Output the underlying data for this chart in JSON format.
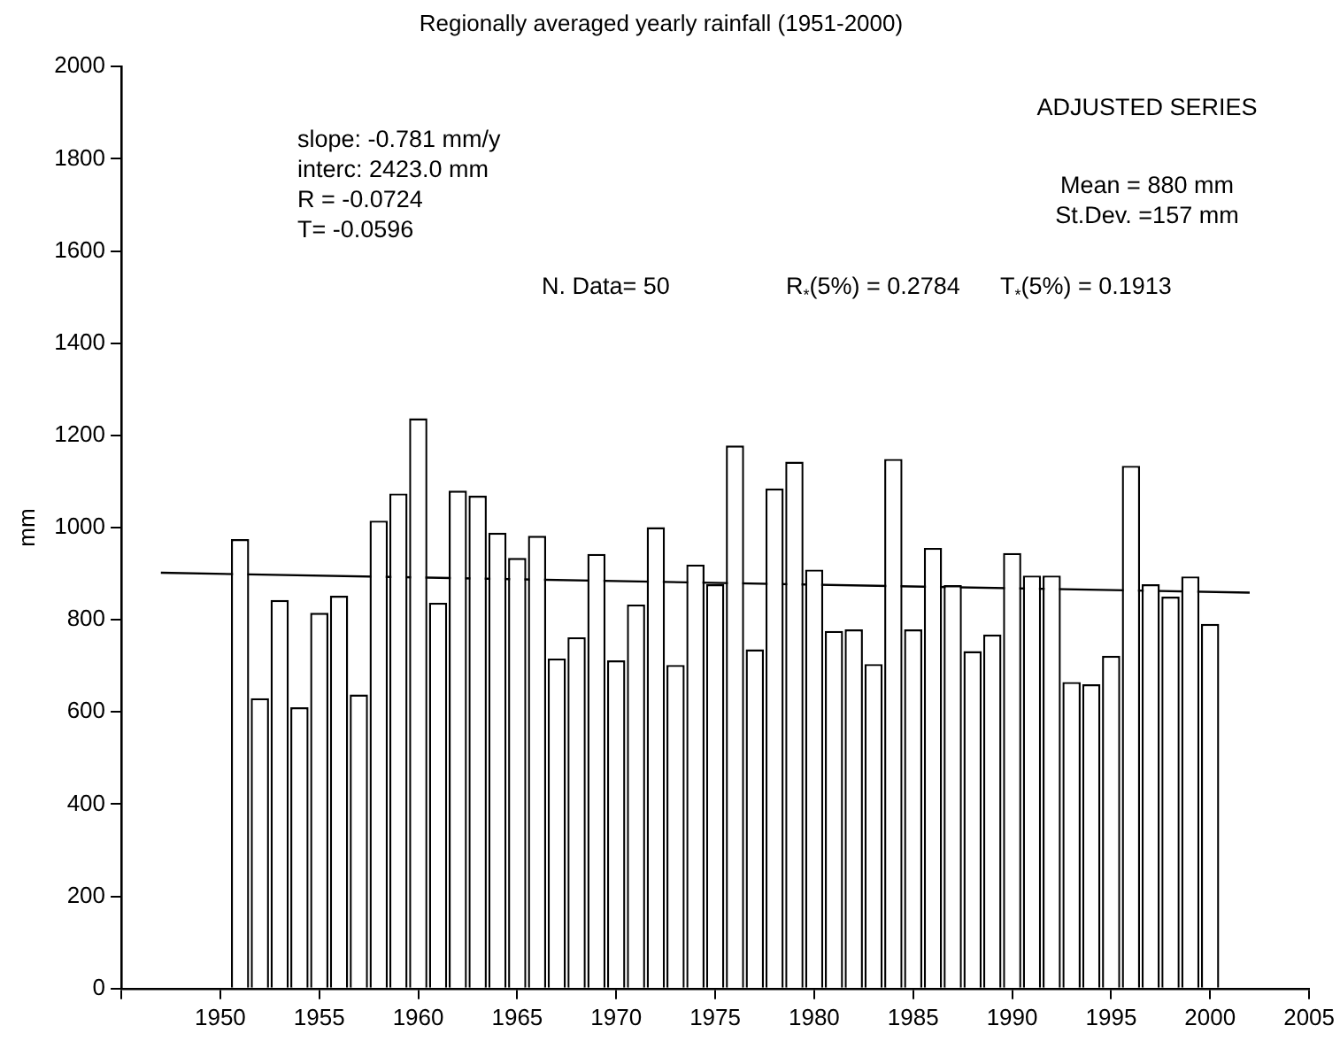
{
  "chart_data": {
    "type": "bar",
    "title": "Regionally averaged yearly rainfall (1951-2000)",
    "ylabel": "mm",
    "x": [
      1951,
      1952,
      1953,
      1954,
      1955,
      1956,
      1957,
      1958,
      1959,
      1960,
      1961,
      1962,
      1963,
      1964,
      1965,
      1966,
      1967,
      1968,
      1969,
      1970,
      1971,
      1972,
      1973,
      1974,
      1975,
      1976,
      1977,
      1978,
      1979,
      1980,
      1981,
      1982,
      1983,
      1984,
      1985,
      1986,
      1987,
      1988,
      1989,
      1990,
      1991,
      1992,
      1993,
      1994,
      1995,
      1996,
      1997,
      1998,
      1999,
      2000
    ],
    "series": [
      {
        "color": "#ffffff",
        "values": [
          975,
          630,
          843,
          610,
          815,
          852,
          638,
          1015,
          1074,
          1237,
          837,
          1080,
          1069,
          989,
          934,
          982,
          716,
          762,
          943,
          712,
          833,
          1001,
          702,
          920,
          877,
          1178,
          736,
          1085,
          1143,
          909,
          776,
          779,
          704,
          1149,
          779,
          956,
          875,
          732,
          768,
          945,
          896,
          896,
          665,
          660,
          722,
          1134,
          877,
          850,
          894,
          791
        ]
      },
      {
        "type": "line",
        "color": "#000000",
        "x": [
          1947,
          2002
        ],
        "values": [
          902,
          859
        ]
      }
    ],
    "xlim": [
      1945,
      2005
    ],
    "xticks": [
      {
        "value": 1945,
        "label": null
      },
      1950,
      1955,
      1960,
      1965,
      1970,
      1975,
      1980,
      1985,
      1990,
      1995,
      2000,
      2005
    ],
    "ylim": [
      0,
      2000
    ],
    "yticks": [
      0,
      200,
      400,
      600,
      800,
      1000,
      1200,
      1400,
      1600,
      1800,
      2000
    ],
    "grid": false,
    "legend": false,
    "annotations": [
      "ADJUSTED SERIES",
      "slope: -0.781 mm/y",
      "interc: 2423.0 mm",
      "R = -0.0724",
      "T= -0.0596",
      "Mean = 880 mm",
      "St.Dev. =157 mm",
      "N. Data= 50",
      "R$_{*}$(5%) = 0.2784",
      "T$_{*}$(5%) = 0.1913"
    ]
  }
}
